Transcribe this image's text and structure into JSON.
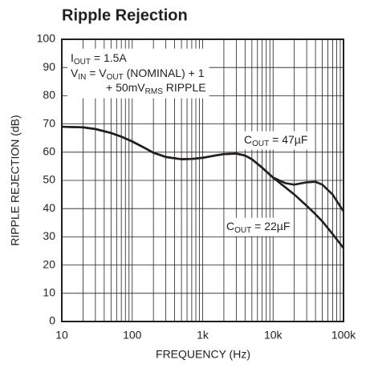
{
  "chart_data": {
    "type": "line",
    "title": "Ripple Rejection",
    "x_label": "FREQUENCY (Hz)",
    "y_label": "RIPPLE REJECTION (dB)",
    "xscale": "log",
    "grid": true,
    "xlim": [
      10,
      100000
    ],
    "ylim": [
      0,
      100
    ],
    "xticks": [
      10,
      100,
      {
        "value": 1000,
        "label": "1k"
      },
      {
        "value": 10000,
        "label": "10k"
      },
      {
        "value": 100000,
        "label": "100k"
      }
    ],
    "yticks": [
      0,
      10,
      20,
      30,
      40,
      50,
      60,
      70,
      80,
      90,
      100
    ],
    "annotations": [
      [
        "I",
        "OUT",
        " = 1.5A"
      ],
      [
        "V",
        "IN",
        " = V",
        "OUT",
        " (NOMINAL) + 1"
      ],
      [
        "+ 50mV",
        "RMS",
        " RIPPLE"
      ]
    ],
    "x": [
      10,
      20,
      30,
      50,
      70,
      100,
      150,
      200,
      300,
      500,
      700,
      1000,
      1500,
      2000,
      3000,
      4000,
      5000,
      7000,
      10000,
      15000,
      20000,
      30000,
      40000,
      50000,
      70000,
      100000
    ],
    "series": [
      {
        "name": [
          "C",
          "OUT",
          " = 47µF"
        ],
        "color": "#231f20",
        "values": [
          69,
          68.8,
          68.2,
          66.8,
          65.5,
          63.8,
          61.5,
          59.8,
          58.3,
          57.5,
          57.6,
          58,
          58.8,
          59.3,
          59.5,
          58.8,
          57.5,
          54.5,
          51,
          49,
          48.5,
          49.3,
          49.5,
          48.5,
          45,
          39
        ]
      },
      {
        "name": [
          "C",
          "OUT",
          " = 22µF"
        ],
        "color": "#231f20",
        "values": [
          69,
          68.8,
          68.2,
          66.8,
          65.5,
          63.8,
          61.5,
          59.8,
          58.3,
          57.5,
          57.6,
          58,
          58.8,
          59.3,
          59.5,
          58.8,
          57.5,
          54.5,
          51,
          47.5,
          45,
          41,
          38,
          35.5,
          31,
          26
        ]
      }
    ]
  }
}
